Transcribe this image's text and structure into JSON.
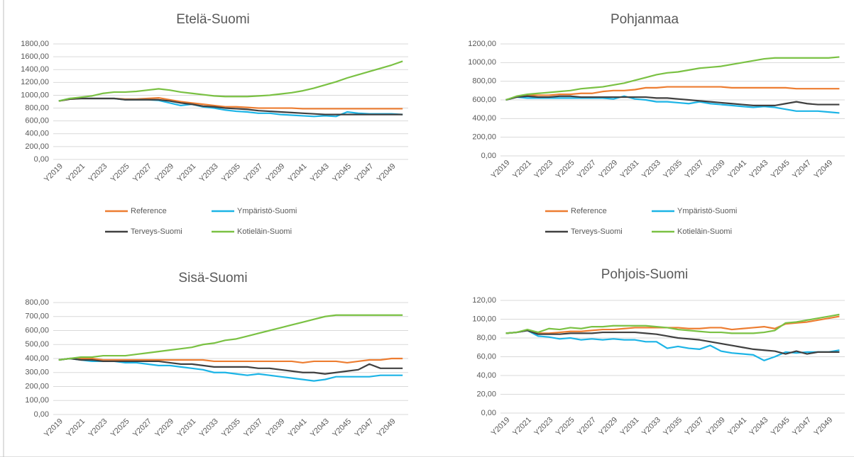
{
  "chart_data": [
    {
      "type": "line",
      "title": "Etelä-Suomi",
      "categories": [
        "Y2019",
        null,
        "Y2021",
        null,
        "Y2023",
        null,
        "Y2025",
        null,
        "Y2027",
        null,
        "Y2029",
        null,
        "Y2031",
        null,
        "Y2033",
        null,
        "Y2035",
        null,
        "Y2037",
        null,
        "Y2039",
        null,
        "Y2041",
        null,
        "Y2043",
        null,
        "Y2045",
        null,
        "Y2047",
        null,
        "Y2049",
        null
      ],
      "ylim": [
        0,
        1800
      ],
      "yticks": [
        {
          "value": 0,
          "label": "0,00"
        },
        {
          "value": 200,
          "label": "200,00"
        },
        {
          "value": 400,
          "label": "400,00"
        },
        {
          "value": 600,
          "label": "600,00"
        },
        {
          "value": 800,
          "label": "800,00"
        },
        {
          "value": 1000,
          "label": "1000,00"
        },
        {
          "value": 1200,
          "label": "1200,00"
        },
        {
          "value": 1400,
          "label": "1400,00"
        },
        {
          "value": 1600,
          "label": "1600,00"
        },
        {
          "value": 1800,
          "label": "1800,00"
        }
      ],
      "grid": true,
      "series": [
        {
          "name": "Reference",
          "color": "#ED7D31",
          "values": [
            910,
            940,
            950,
            950,
            950,
            950,
            940,
            940,
            950,
            960,
            930,
            900,
            880,
            860,
            840,
            820,
            820,
            810,
            800,
            800,
            800,
            800,
            790,
            790,
            790,
            790,
            790,
            790,
            790,
            790,
            790,
            790
          ]
        },
        {
          "name": "Ympäristö-Suomi",
          "color": "#1CB4E6",
          "values": [
            910,
            950,
            950,
            950,
            950,
            950,
            930,
            930,
            930,
            920,
            880,
            840,
            860,
            820,
            800,
            770,
            750,
            740,
            720,
            720,
            700,
            690,
            680,
            670,
            680,
            670,
            740,
            720,
            710,
            710,
            710,
            700
          ]
        },
        {
          "name": "Terveys-Suomi",
          "color": "#404040",
          "values": [
            910,
            940,
            950,
            950,
            950,
            950,
            930,
            930,
            930,
            930,
            910,
            880,
            860,
            830,
            820,
            800,
            790,
            780,
            760,
            750,
            740,
            730,
            720,
            710,
            700,
            700,
            700,
            700,
            700,
            700,
            700,
            700
          ]
        },
        {
          "name": "Kotieläin-Suomi",
          "color": "#7AC143",
          "values": [
            910,
            950,
            970,
            990,
            1030,
            1050,
            1050,
            1060,
            1080,
            1100,
            1080,
            1050,
            1030,
            1010,
            990,
            980,
            980,
            980,
            990,
            1000,
            1020,
            1040,
            1070,
            1110,
            1160,
            1210,
            1270,
            1320,
            1370,
            1420,
            1470,
            1530
          ]
        }
      ]
    },
    {
      "type": "line",
      "title": "Pohjanmaa",
      "categories": [
        "Y2019",
        null,
        "Y2021",
        null,
        "Y2023",
        null,
        "Y2025",
        null,
        "Y2027",
        null,
        "Y2029",
        null,
        "Y2031",
        null,
        "Y2033",
        null,
        "Y2035",
        null,
        "Y2037",
        null,
        "Y2039",
        null,
        "Y2041",
        null,
        "Y2043",
        null,
        "Y2045",
        null,
        "Y2047",
        null,
        "Y2049",
        null
      ],
      "ylim": [
        0,
        1200
      ],
      "yticks": [
        {
          "value": 0,
          "label": "0,00"
        },
        {
          "value": 200,
          "label": "200,00"
        },
        {
          "value": 400,
          "label": "400,00"
        },
        {
          "value": 600,
          "label": "600,00"
        },
        {
          "value": 800,
          "label": "800,00"
        },
        {
          "value": 1000,
          "label": "1000,00"
        },
        {
          "value": 1200,
          "label": "1200,00"
        }
      ],
      "grid": true,
      "series": [
        {
          "name": "Reference",
          "color": "#ED7D31",
          "values": [
            600,
            630,
            650,
            650,
            650,
            660,
            660,
            670,
            670,
            690,
            700,
            700,
            710,
            730,
            730,
            740,
            740,
            740,
            740,
            740,
            740,
            730,
            730,
            730,
            730,
            730,
            730,
            720,
            720,
            720,
            720,
            720
          ]
        },
        {
          "name": "Ympäristö-Suomi",
          "color": "#1CB4E6",
          "values": [
            600,
            630,
            620,
            620,
            620,
            620,
            620,
            620,
            620,
            620,
            610,
            640,
            610,
            600,
            580,
            580,
            570,
            560,
            580,
            560,
            550,
            540,
            530,
            520,
            530,
            520,
            500,
            480,
            480,
            480,
            470,
            460
          ]
        },
        {
          "name": "Terveys-Suomi",
          "color": "#404040",
          "values": [
            600,
            630,
            640,
            630,
            630,
            640,
            640,
            630,
            630,
            630,
            630,
            630,
            630,
            630,
            620,
            620,
            610,
            600,
            590,
            580,
            570,
            560,
            550,
            540,
            540,
            540,
            560,
            580,
            560,
            550,
            550,
            550
          ]
        },
        {
          "name": "Kotieläin-Suomi",
          "color": "#7AC143",
          "values": [
            600,
            640,
            660,
            670,
            680,
            690,
            700,
            720,
            730,
            740,
            760,
            780,
            810,
            840,
            870,
            890,
            900,
            920,
            940,
            950,
            960,
            980,
            1000,
            1020,
            1040,
            1050,
            1050,
            1050,
            1050,
            1050,
            1050,
            1060
          ]
        }
      ]
    },
    {
      "type": "line",
      "title": "Sisä-Suomi",
      "categories": [
        "Y2019",
        null,
        "Y2021",
        null,
        "Y2023",
        null,
        "Y2025",
        null,
        "Y2027",
        null,
        "Y2029",
        null,
        "Y2031",
        null,
        "Y2033",
        null,
        "Y2035",
        null,
        "Y2037",
        null,
        "Y2039",
        null,
        "Y2041",
        null,
        "Y2043",
        null,
        "Y2045",
        null,
        "Y2047",
        null,
        "Y2049",
        null
      ],
      "ylim": [
        0,
        800
      ],
      "yticks": [
        {
          "value": 0,
          "label": "0,00"
        },
        {
          "value": 100,
          "label": "100,00"
        },
        {
          "value": 200,
          "label": "200,00"
        },
        {
          "value": 300,
          "label": "300,00"
        },
        {
          "value": 400,
          "label": "400,00"
        },
        {
          "value": 500,
          "label": "500,00"
        },
        {
          "value": 600,
          "label": "600,00"
        },
        {
          "value": 700,
          "label": "700,00"
        },
        {
          "value": 800,
          "label": "800,00"
        }
      ],
      "grid": true,
      "series": [
        {
          "color": "#ED7D31",
          "values": [
            390,
            400,
            400,
            400,
            390,
            390,
            390,
            390,
            390,
            390,
            390,
            390,
            390,
            390,
            380,
            380,
            380,
            380,
            380,
            380,
            380,
            380,
            370,
            380,
            380,
            380,
            370,
            380,
            390,
            390,
            400,
            400
          ]
        },
        {
          "color": "#1CB4E6",
          "values": [
            390,
            400,
            390,
            380,
            380,
            380,
            370,
            370,
            360,
            350,
            350,
            340,
            330,
            320,
            300,
            300,
            290,
            280,
            290,
            280,
            270,
            260,
            250,
            240,
            250,
            270,
            270,
            270,
            270,
            280,
            280,
            280
          ]
        },
        {
          "color": "#404040",
          "values": [
            390,
            400,
            390,
            390,
            380,
            380,
            380,
            380,
            380,
            380,
            370,
            360,
            360,
            350,
            340,
            340,
            340,
            340,
            330,
            330,
            320,
            310,
            300,
            300,
            290,
            300,
            310,
            320,
            360,
            330,
            330,
            330
          ]
        },
        {
          "color": "#7AC143",
          "values": [
            390,
            400,
            410,
            410,
            420,
            420,
            420,
            430,
            440,
            450,
            460,
            470,
            480,
            500,
            510,
            530,
            540,
            560,
            580,
            600,
            620,
            640,
            660,
            680,
            700,
            710,
            710,
            710,
            710,
            710,
            710,
            710
          ]
        }
      ]
    },
    {
      "type": "line",
      "title": "Pohjois-Suomi",
      "categories": [
        "Y2019",
        null,
        "Y2021",
        null,
        "Y2023",
        null,
        "Y2025",
        null,
        "Y2027",
        null,
        "Y2029",
        null,
        "Y2031",
        null,
        "Y2033",
        null,
        "Y2035",
        null,
        "Y2037",
        null,
        "Y2039",
        null,
        "Y2041",
        null,
        "Y2043",
        null,
        "Y2045",
        null,
        "Y2047",
        null,
        "Y2049",
        null
      ],
      "ylim": [
        0,
        120
      ],
      "yticks": [
        {
          "value": 0,
          "label": "0,00"
        },
        {
          "value": 20,
          "label": "20,00"
        },
        {
          "value": 40,
          "label": "40,00"
        },
        {
          "value": 60,
          "label": "60,00"
        },
        {
          "value": 80,
          "label": "80,00"
        },
        {
          "value": 100,
          "label": "100,00"
        },
        {
          "value": 120,
          "label": "120,00"
        }
      ],
      "grid": true,
      "series": [
        {
          "color": "#ED7D31",
          "values": [
            85,
            86,
            88,
            85,
            85,
            86,
            87,
            87,
            88,
            89,
            89,
            90,
            91,
            91,
            91,
            91,
            91,
            90,
            90,
            91,
            91,
            89,
            90,
            91,
            92,
            90,
            95,
            96,
            97,
            99,
            101,
            103
          ]
        },
        {
          "color": "#1CB4E6",
          "values": [
            85,
            86,
            88,
            82,
            81,
            79,
            80,
            78,
            79,
            78,
            79,
            78,
            78,
            76,
            76,
            69,
            71,
            69,
            68,
            72,
            66,
            64,
            63,
            62,
            56,
            60,
            65,
            64,
            65,
            65,
            65,
            67
          ]
        },
        {
          "color": "#404040",
          "values": [
            85,
            86,
            88,
            84,
            84,
            84,
            85,
            85,
            85,
            86,
            86,
            86,
            86,
            85,
            84,
            82,
            80,
            79,
            78,
            76,
            74,
            72,
            70,
            68,
            67,
            66,
            63,
            66,
            63,
            65,
            65,
            65
          ]
        },
        {
          "color": "#7AC143",
          "values": [
            85,
            86,
            89,
            86,
            90,
            89,
            91,
            90,
            92,
            92,
            93,
            93,
            93,
            93,
            92,
            91,
            89,
            88,
            87,
            86,
            86,
            85,
            85,
            85,
            86,
            88,
            96,
            97,
            99,
            101,
            103,
            105
          ]
        }
      ]
    }
  ]
}
